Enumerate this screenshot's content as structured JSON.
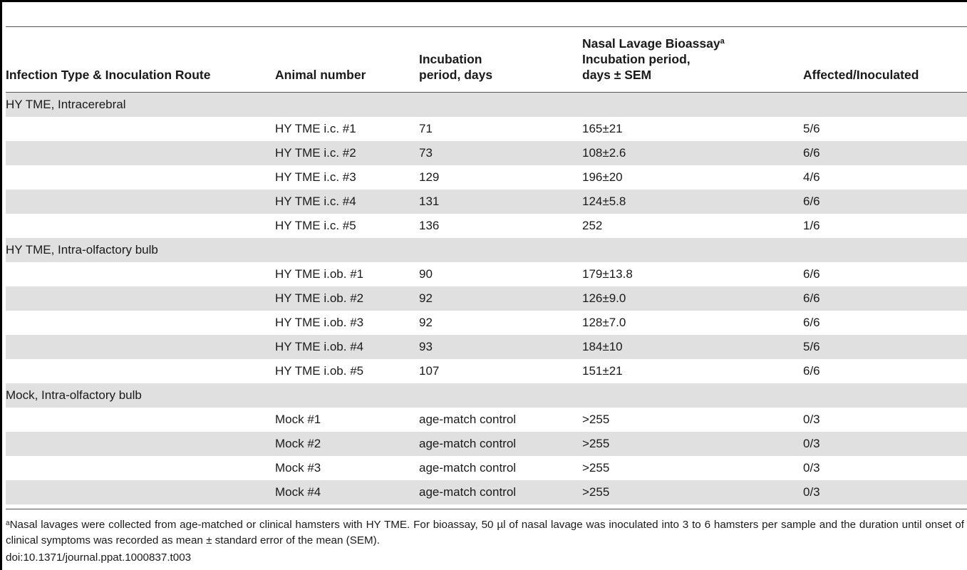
{
  "table": {
    "headers": {
      "route": "Infection Type & Inoculation Route",
      "animal": "Animal number",
      "incubation": "Incubation\nperiod, days",
      "bioassay": "Nasal Lavage Bioassay",
      "bioassay_sup": "a",
      "bioassay_sub": "Incubation period,\ndays ±  SEM",
      "affected": "Affected/Inoculated"
    },
    "groups": [
      {
        "label": "HY TME, Intracerebral",
        "rows": [
          {
            "animal": "HY TME i.c. #1",
            "incubation": "71",
            "bioassay": "165±21",
            "affected": "5/6"
          },
          {
            "animal": "HY TME i.c. #2",
            "incubation": "73",
            "bioassay": "108±2.6",
            "affected": "6/6"
          },
          {
            "animal": "HY TME i.c. #3",
            "incubation": "129",
            "bioassay": "196±20",
            "affected": "4/6"
          },
          {
            "animal": "HY TME i.c. #4",
            "incubation": "131",
            "bioassay": "124±5.8",
            "affected": "6/6"
          },
          {
            "animal": "HY TME i.c. #5",
            "incubation": "136",
            "bioassay": "252",
            "affected": "1/6"
          }
        ]
      },
      {
        "label": "HY TME, Intra-olfactory bulb",
        "rows": [
          {
            "animal": "HY TME i.ob. #1",
            "incubation": "90",
            "bioassay": "179±13.8",
            "affected": "6/6"
          },
          {
            "animal": "HY TME i.ob. #2",
            "incubation": "92",
            "bioassay": "126±9.0",
            "affected": "6/6"
          },
          {
            "animal": "HY TME i.ob. #3",
            "incubation": "92",
            "bioassay": "128±7.0",
            "affected": "6/6"
          },
          {
            "animal": "HY TME i.ob. #4",
            "incubation": "93",
            "bioassay": "184±10",
            "affected": "5/6"
          },
          {
            "animal": "HY TME i.ob. #5",
            "incubation": "107",
            "bioassay": "151±21",
            "affected": "6/6"
          }
        ]
      },
      {
        "label": "Mock, Intra-olfactory bulb",
        "rows": [
          {
            "animal": "Mock #1",
            "incubation": "age-match control",
            "bioassay": ">255",
            "affected": "0/3"
          },
          {
            "animal": "Mock #2",
            "incubation": "age-match control",
            "bioassay": ">255",
            "affected": "0/3"
          },
          {
            "animal": "Mock #3",
            "incubation": "age-match control",
            "bioassay": ">255",
            "affected": "0/3"
          },
          {
            "animal": "Mock #4",
            "incubation": "age-match control",
            "bioassay": ">255",
            "affected": "0/3"
          }
        ]
      }
    ]
  },
  "footnote": {
    "marker": "a",
    "text": "Nasal lavages were collected from age-matched or clinical hamsters with HY TME. For bioassay, 50 µl of nasal lavage was inoculated into 3 to 6 hamsters per sample and the duration until onset of clinical symptoms was recorded as mean ± standard error of the mean (SEM)."
  },
  "doi": "doi:10.1371/journal.ppat.1000837.t003",
  "colors": {
    "row_shade": "#e0e0e0",
    "rule": "#555555",
    "frame": "#000000"
  }
}
